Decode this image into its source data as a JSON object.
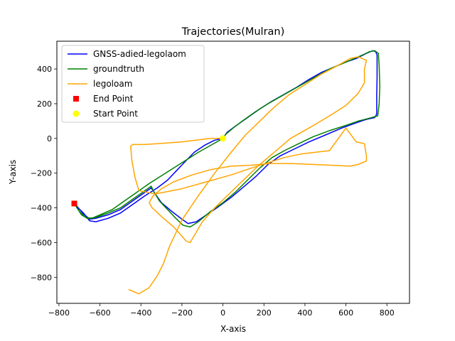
{
  "chart_data": {
    "type": "line",
    "title": "Trajectories(Mulran)",
    "xlabel": "X-axis",
    "ylabel": "Y-axis",
    "xlim": [
      -810,
      910
    ],
    "ylim": [
      -950,
      560
    ],
    "xticks": [
      -800,
      -600,
      -400,
      -200,
      0,
      200,
      400,
      600,
      800
    ],
    "xtick_labels": [
      "−800",
      "−600",
      "−400",
      "−200",
      "0",
      "200",
      "400",
      "600",
      "800"
    ],
    "yticks": [
      -800,
      -600,
      -400,
      -200,
      0,
      200,
      400
    ],
    "ytick_labels": [
      "−800",
      "−600",
      "−400",
      "−200",
      "0",
      "200",
      "400"
    ],
    "grid": false,
    "legend_position": "top-left",
    "series": [
      {
        "name": "GNSS-adied-legolaom",
        "color": "#0000ff",
        "points": [
          [
            0,
            0
          ],
          [
            -40,
            -10
          ],
          [
            -90,
            -40
          ],
          [
            -140,
            -80
          ],
          [
            -190,
            -140
          ],
          [
            -230,
            -190
          ],
          [
            -270,
            -240
          ],
          [
            -320,
            -285
          ],
          [
            -380,
            -330
          ],
          [
            -440,
            -380
          ],
          [
            -500,
            -430
          ],
          [
            -560,
            -460
          ],
          [
            -620,
            -480
          ],
          [
            -650,
            -475
          ],
          [
            -680,
            -430
          ],
          [
            -720,
            -385
          ],
          [
            -725,
            -375
          ],
          [
            -720,
            -380
          ],
          [
            -680,
            -435
          ],
          [
            -650,
            -465
          ],
          [
            -620,
            -460
          ],
          [
            -560,
            -440
          ],
          [
            -500,
            -410
          ],
          [
            -440,
            -360
          ],
          [
            -380,
            -310
          ],
          [
            -350,
            -285
          ],
          [
            -330,
            -320
          ],
          [
            -300,
            -370
          ],
          [
            -250,
            -420
          ],
          [
            -200,
            -465
          ],
          [
            -170,
            -490
          ],
          [
            -130,
            -480
          ],
          [
            -80,
            -440
          ],
          [
            -30,
            -400
          ],
          [
            40,
            -340
          ],
          [
            100,
            -280
          ],
          [
            160,
            -220
          ],
          [
            220,
            -150
          ],
          [
            280,
            -100
          ],
          [
            350,
            -60
          ],
          [
            420,
            -20
          ],
          [
            500,
            20
          ],
          [
            580,
            60
          ],
          [
            650,
            90
          ],
          [
            700,
            110
          ],
          [
            740,
            120
          ],
          [
            750,
            140
          ],
          [
            750,
            250
          ],
          [
            752,
            350
          ],
          [
            752,
            480
          ],
          [
            745,
            500
          ],
          [
            730,
            505
          ],
          [
            700,
            490
          ],
          [
            650,
            460
          ],
          [
            600,
            440
          ],
          [
            540,
            410
          ],
          [
            480,
            380
          ],
          [
            420,
            340
          ],
          [
            360,
            295
          ],
          [
            300,
            255
          ],
          [
            240,
            215
          ],
          [
            180,
            170
          ],
          [
            120,
            120
          ],
          [
            60,
            70
          ],
          [
            20,
            35
          ],
          [
            0,
            0
          ]
        ]
      },
      {
        "name": "groundtruth",
        "color": "#008000",
        "points": [
          [
            0,
            0
          ],
          [
            -60,
            -40
          ],
          [
            -120,
            -80
          ],
          [
            -180,
            -125
          ],
          [
            -240,
            -170
          ],
          [
            -300,
            -215
          ],
          [
            -360,
            -260
          ],
          [
            -420,
            -310
          ],
          [
            -480,
            -360
          ],
          [
            -540,
            -410
          ],
          [
            -600,
            -440
          ],
          [
            -640,
            -460
          ],
          [
            -670,
            -455
          ],
          [
            -700,
            -420
          ],
          [
            -720,
            -385
          ],
          [
            -725,
            -375
          ],
          [
            -715,
            -395
          ],
          [
            -690,
            -440
          ],
          [
            -660,
            -462
          ],
          [
            -620,
            -455
          ],
          [
            -560,
            -430
          ],
          [
            -500,
            -400
          ],
          [
            -440,
            -350
          ],
          [
            -380,
            -300
          ],
          [
            -350,
            -275
          ],
          [
            -340,
            -300
          ],
          [
            -310,
            -360
          ],
          [
            -270,
            -410
          ],
          [
            -230,
            -460
          ],
          [
            -195,
            -500
          ],
          [
            -160,
            -510
          ],
          [
            -120,
            -480
          ],
          [
            -60,
            -420
          ],
          [
            0,
            -370
          ],
          [
            60,
            -310
          ],
          [
            120,
            -240
          ],
          [
            180,
            -170
          ],
          [
            240,
            -110
          ],
          [
            300,
            -70
          ],
          [
            370,
            -30
          ],
          [
            440,
            10
          ],
          [
            520,
            45
          ],
          [
            600,
            75
          ],
          [
            660,
            100
          ],
          [
            710,
            115
          ],
          [
            755,
            130
          ],
          [
            762,
            200
          ],
          [
            765,
            300
          ],
          [
            762,
            420
          ],
          [
            758,
            490
          ],
          [
            740,
            505
          ],
          [
            715,
            500
          ],
          [
            680,
            480
          ],
          [
            640,
            460
          ],
          [
            580,
            430
          ],
          [
            520,
            400
          ],
          [
            460,
            360
          ],
          [
            400,
            320
          ],
          [
            340,
            280
          ],
          [
            280,
            240
          ],
          [
            220,
            200
          ],
          [
            160,
            155
          ],
          [
            100,
            105
          ],
          [
            50,
            60
          ],
          [
            15,
            25
          ],
          [
            0,
            0
          ]
        ]
      },
      {
        "name": "legoloam",
        "color": "#ffa500",
        "points": [
          [
            0,
            0
          ],
          [
            -60,
            0
          ],
          [
            -130,
            -10
          ],
          [
            -200,
            -20
          ],
          [
            -260,
            -25
          ],
          [
            -320,
            -30
          ],
          [
            -380,
            -35
          ],
          [
            -440,
            -35
          ],
          [
            -450,
            -45
          ],
          [
            -445,
            -120
          ],
          [
            -430,
            -220
          ],
          [
            -410,
            -300
          ],
          [
            -330,
            -320
          ],
          [
            -200,
            -290
          ],
          [
            -80,
            -250
          ],
          [
            40,
            -210
          ],
          [
            140,
            -170
          ],
          [
            220,
            -140
          ],
          [
            300,
            -110
          ],
          [
            380,
            -90
          ],
          [
            450,
            -80
          ],
          [
            520,
            -70
          ],
          [
            600,
            60
          ],
          [
            650,
            -20
          ],
          [
            690,
            -30
          ],
          [
            700,
            -100
          ],
          [
            700,
            -130
          ],
          [
            660,
            -150
          ],
          [
            620,
            -160
          ],
          [
            540,
            -155
          ],
          [
            440,
            -150
          ],
          [
            340,
            -145
          ],
          [
            230,
            -145
          ],
          [
            130,
            -155
          ],
          [
            40,
            -160
          ],
          [
            -60,
            -180
          ],
          [
            -150,
            -210
          ],
          [
            -240,
            -250
          ],
          [
            -300,
            -290
          ],
          [
            -340,
            -330
          ],
          [
            -360,
            -370
          ],
          [
            -345,
            -400
          ],
          [
            -300,
            -450
          ],
          [
            -240,
            -510
          ],
          [
            -180,
            -590
          ],
          [
            -160,
            -600
          ],
          [
            -140,
            -560
          ],
          [
            -100,
            -480
          ],
          [
            -40,
            -400
          ],
          [
            30,
            -320
          ],
          [
            100,
            -240
          ],
          [
            170,
            -160
          ],
          [
            250,
            -80
          ],
          [
            330,
            0
          ],
          [
            420,
            60
          ],
          [
            520,
            130
          ],
          [
            600,
            190
          ],
          [
            660,
            260
          ],
          [
            690,
            320
          ],
          [
            690,
            400
          ],
          [
            700,
            450
          ],
          [
            660,
            470
          ],
          [
            620,
            460
          ],
          [
            560,
            420
          ],
          [
            480,
            370
          ],
          [
            400,
            310
          ],
          [
            320,
            250
          ],
          [
            250,
            180
          ],
          [
            180,
            100
          ],
          [
            110,
            20
          ],
          [
            40,
            -80
          ],
          [
            -40,
            -200
          ],
          [
            -120,
            -330
          ],
          [
            -200,
            -470
          ],
          [
            -260,
            -620
          ],
          [
            -290,
            -720
          ],
          [
            -320,
            -790
          ],
          [
            -360,
            -860
          ],
          [
            -410,
            -895
          ],
          [
            -460,
            -870
          ]
        ]
      }
    ],
    "markers": [
      {
        "name": "End Point",
        "color": "#ff0000",
        "shape": "square",
        "x": -725,
        "y": -375
      },
      {
        "name": "Start Point",
        "color": "#ffff00",
        "shape": "circle",
        "x": 0,
        "y": 0
      }
    ]
  }
}
